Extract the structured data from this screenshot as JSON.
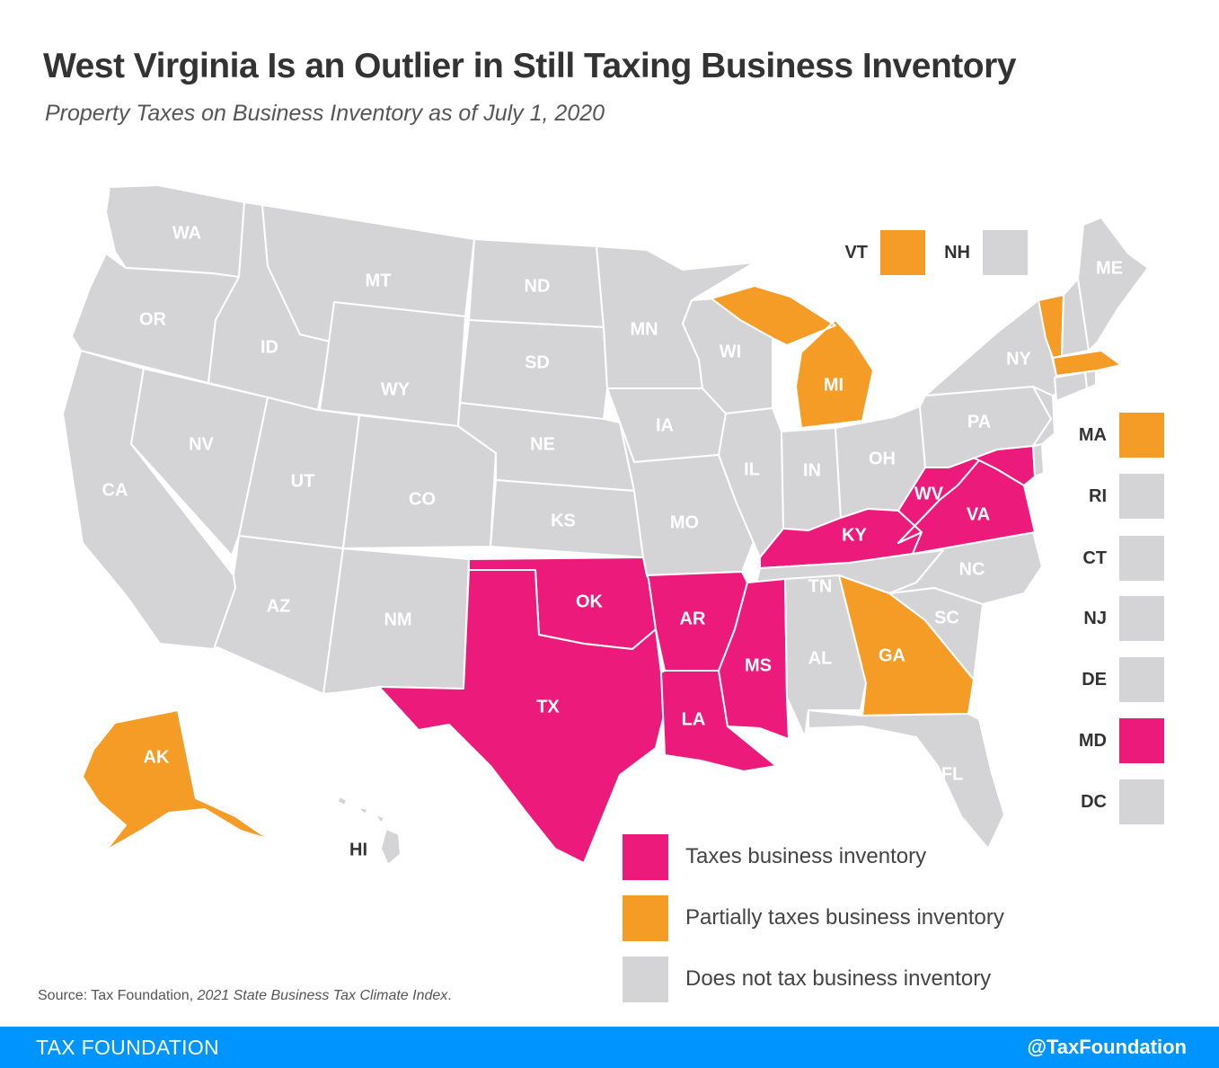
{
  "header": {
    "title": "West Virginia Is an Outlier in Still Taxing Business Inventory",
    "subtitle": "Property Taxes on Business Inventory as of July 1, 2020"
  },
  "colors": {
    "taxes": "#ec1a7b",
    "partial": "#f59c27",
    "none": "#d4d4d6",
    "footer": "#0094ff"
  },
  "states": {
    "WA": "none",
    "OR": "none",
    "CA": "none",
    "ID": "none",
    "NV": "none",
    "MT": "none",
    "WY": "none",
    "UT": "none",
    "AZ": "none",
    "CO": "none",
    "NM": "none",
    "ND": "none",
    "SD": "none",
    "NE": "none",
    "KS": "none",
    "OK": "taxes",
    "TX": "taxes",
    "MN": "none",
    "IA": "none",
    "MO": "none",
    "AR": "taxes",
    "LA": "taxes",
    "WI": "none",
    "IL": "none",
    "MI": "partial",
    "IN": "none",
    "OH": "none",
    "KY": "taxes",
    "TN": "none",
    "MS": "taxes",
    "AL": "none",
    "GA": "partial",
    "FL": "none",
    "SC": "none",
    "NC": "none",
    "VA": "taxes",
    "WV": "taxes",
    "PA": "none",
    "NY": "none",
    "VT": "partial",
    "NH": "none",
    "ME": "none",
    "MA": "partial",
    "RI": "none",
    "CT": "none",
    "NJ": "none",
    "DE": "none",
    "MD": "taxes",
    "DC": "none",
    "AK": "partial",
    "HI": "none"
  },
  "labels": {
    "WA": "WA",
    "OR": "OR",
    "CA": "CA",
    "ID": "ID",
    "NV": "NV",
    "MT": "MT",
    "WY": "WY",
    "UT": "UT",
    "AZ": "AZ",
    "CO": "CO",
    "NM": "NM",
    "ND": "ND",
    "SD": "SD",
    "NE": "NE",
    "KS": "KS",
    "OK": "OK",
    "TX": "TX",
    "MN": "MN",
    "IA": "IA",
    "MO": "MO",
    "AR": "AR",
    "LA": "LA",
    "WI": "WI",
    "IL": "IL",
    "MI": "MI",
    "IN": "IN",
    "OH": "OH",
    "KY": "KY",
    "TN": "TN",
    "MS": "MS",
    "AL": "AL",
    "GA": "GA",
    "FL": "FL",
    "SC": "SC",
    "NC": "NC",
    "VA": "VA",
    "WV": "WV",
    "PA": "PA",
    "NY": "NY",
    "ME": "ME",
    "AK": "AK",
    "HI": "HI"
  },
  "small_states": {
    "VT": "VT",
    "NH": "NH",
    "MA": "MA",
    "RI": "RI",
    "CT": "CT",
    "NJ": "NJ",
    "DE": "DE",
    "MD": "MD",
    "DC": "DC"
  },
  "legend": {
    "taxes": "Taxes business inventory",
    "partial": "Partially taxes business inventory",
    "none": "Does not tax business inventory"
  },
  "source": {
    "prefix": "Source: Tax Foundation, ",
    "italic": "2021 State Business Tax Climate Index",
    "suffix": "."
  },
  "footer": {
    "org": "TAX FOUNDATION",
    "handle": "@TaxFoundation"
  }
}
